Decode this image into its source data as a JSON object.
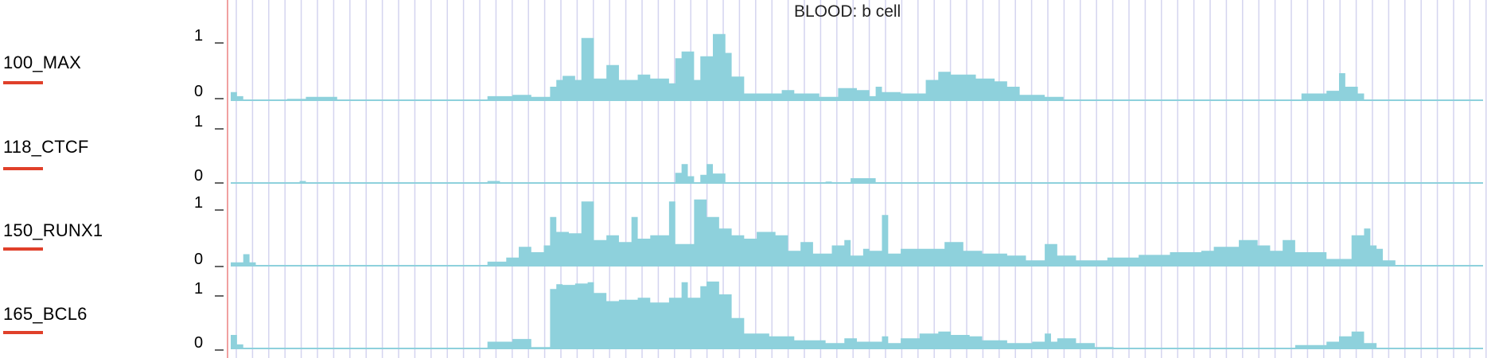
{
  "chart_data": {
    "type": "area",
    "title": "BLOOD: b cell",
    "xlabel": "",
    "ylabel": "",
    "x_bins": 200,
    "ylim": [
      0,
      1
    ],
    "y_ticks": [
      "1",
      "0"
    ],
    "grid": "vertical",
    "colors": {
      "fill": "#8ed1dc",
      "baseline": "#8ed1dc",
      "grid": "#d4d4ef",
      "underline": "#e0402a",
      "origin_line": "#f0a0a0"
    },
    "series": [
      {
        "name": "100_MAX",
        "segments": [
          [
            0,
            0.12
          ],
          [
            1,
            0.06
          ],
          [
            2,
            0.0
          ],
          [
            9,
            0.02
          ],
          [
            12,
            0.05
          ],
          [
            17,
            0.0
          ],
          [
            41,
            0.06
          ],
          [
            45,
            0.08
          ],
          [
            48,
            0.05
          ],
          [
            51,
            0.2
          ],
          [
            52,
            0.3
          ],
          [
            53,
            0.36
          ],
          [
            55,
            0.3
          ],
          [
            56,
            0.92
          ],
          [
            58,
            0.32
          ],
          [
            60,
            0.52
          ],
          [
            62,
            0.3
          ],
          [
            65,
            0.38
          ],
          [
            67,
            0.32
          ],
          [
            70,
            0.25
          ],
          [
            71,
            0.62
          ],
          [
            72,
            0.72
          ],
          [
            74,
            0.3
          ],
          [
            75,
            0.65
          ],
          [
            77,
            0.98
          ],
          [
            79,
            0.7
          ],
          [
            80,
            0.35
          ],
          [
            82,
            0.1
          ],
          [
            88,
            0.15
          ],
          [
            90,
            0.1
          ],
          [
            94,
            0.05
          ],
          [
            97,
            0.18
          ],
          [
            100,
            0.15
          ],
          [
            102,
            0.06
          ],
          [
            103,
            0.2
          ],
          [
            104,
            0.12
          ],
          [
            107,
            0.1
          ],
          [
            111,
            0.3
          ],
          [
            113,
            0.42
          ],
          [
            115,
            0.38
          ],
          [
            119,
            0.32
          ],
          [
            122,
            0.28
          ],
          [
            124,
            0.2
          ],
          [
            126,
            0.08
          ],
          [
            130,
            0.05
          ],
          [
            133,
            0.0
          ],
          [
            171,
            0.1
          ],
          [
            175,
            0.14
          ],
          [
            177,
            0.4
          ],
          [
            178,
            0.2
          ],
          [
            180,
            0.1
          ],
          [
            181,
            0.0
          ]
        ]
      },
      {
        "name": "118_CTCF",
        "segments": [
          [
            0,
            0.0
          ],
          [
            11,
            0.03
          ],
          [
            12,
            0.0
          ],
          [
            41,
            0.03
          ],
          [
            43,
            0.0
          ],
          [
            71,
            0.15
          ],
          [
            72,
            0.28
          ],
          [
            73,
            0.1
          ],
          [
            74,
            0.0
          ],
          [
            75,
            0.12
          ],
          [
            76,
            0.28
          ],
          [
            77,
            0.14
          ],
          [
            79,
            0.0
          ],
          [
            95,
            0.02
          ],
          [
            96,
            0.0
          ],
          [
            99,
            0.07
          ],
          [
            103,
            0.0
          ]
        ]
      },
      {
        "name": "150_RUNX1",
        "segments": [
          [
            0,
            0.05
          ],
          [
            2,
            0.17
          ],
          [
            3,
            0.05
          ],
          [
            4,
            0.0
          ],
          [
            41,
            0.06
          ],
          [
            44,
            0.12
          ],
          [
            46,
            0.28
          ],
          [
            48,
            0.2
          ],
          [
            50,
            0.3
          ],
          [
            51,
            0.72
          ],
          [
            52,
            0.5
          ],
          [
            54,
            0.48
          ],
          [
            56,
            0.95
          ],
          [
            58,
            0.38
          ],
          [
            60,
            0.45
          ],
          [
            62,
            0.35
          ],
          [
            64,
            0.72
          ],
          [
            65,
            0.4
          ],
          [
            67,
            0.45
          ],
          [
            70,
            0.95
          ],
          [
            71,
            0.32
          ],
          [
            74,
            0.98
          ],
          [
            76,
            0.72
          ],
          [
            78,
            0.55
          ],
          [
            80,
            0.45
          ],
          [
            82,
            0.4
          ],
          [
            84,
            0.5
          ],
          [
            87,
            0.45
          ],
          [
            89,
            0.22
          ],
          [
            91,
            0.35
          ],
          [
            93,
            0.18
          ],
          [
            96,
            0.3
          ],
          [
            98,
            0.38
          ],
          [
            99,
            0.15
          ],
          [
            101,
            0.25
          ],
          [
            102,
            0.22
          ],
          [
            104,
            0.75
          ],
          [
            105,
            0.18
          ],
          [
            107,
            0.25
          ],
          [
            110,
            0.25
          ],
          [
            114,
            0.35
          ],
          [
            117,
            0.22
          ],
          [
            120,
            0.18
          ],
          [
            124,
            0.15
          ],
          [
            127,
            0.08
          ],
          [
            130,
            0.32
          ],
          [
            132,
            0.15
          ],
          [
            135,
            0.08
          ],
          [
            140,
            0.12
          ],
          [
            145,
            0.16
          ],
          [
            150,
            0.2
          ],
          [
            155,
            0.22
          ],
          [
            157,
            0.28
          ],
          [
            161,
            0.38
          ],
          [
            164,
            0.3
          ],
          [
            166,
            0.22
          ],
          [
            168,
            0.38
          ],
          [
            170,
            0.2
          ],
          [
            175,
            0.1
          ],
          [
            179,
            0.45
          ],
          [
            181,
            0.55
          ],
          [
            182,
            0.3
          ],
          [
            183,
            0.25
          ],
          [
            184,
            0.08
          ],
          [
            186,
            0.0
          ]
        ]
      },
      {
        "name": "165_BCL6",
        "segments": [
          [
            0,
            0.2
          ],
          [
            1,
            0.06
          ],
          [
            2,
            0.0
          ],
          [
            41,
            0.1
          ],
          [
            45,
            0.14
          ],
          [
            48,
            0.02
          ],
          [
            51,
            0.88
          ],
          [
            52,
            0.95
          ],
          [
            53,
            0.94
          ],
          [
            55,
            0.96
          ],
          [
            57,
            0.98
          ],
          [
            58,
            0.82
          ],
          [
            60,
            0.7
          ],
          [
            62,
            0.72
          ],
          [
            65,
            0.75
          ],
          [
            67,
            0.68
          ],
          [
            70,
            0.75
          ],
          [
            72,
            0.98
          ],
          [
            73,
            0.75
          ],
          [
            75,
            0.92
          ],
          [
            76,
            0.99
          ],
          [
            78,
            0.8
          ],
          [
            80,
            0.45
          ],
          [
            82,
            0.22
          ],
          [
            86,
            0.18
          ],
          [
            90,
            0.12
          ],
          [
            95,
            0.08
          ],
          [
            98,
            0.15
          ],
          [
            100,
            0.1
          ],
          [
            104,
            0.18
          ],
          [
            105,
            0.08
          ],
          [
            107,
            0.15
          ],
          [
            110,
            0.22
          ],
          [
            113,
            0.25
          ],
          [
            115,
            0.2
          ],
          [
            118,
            0.18
          ],
          [
            120,
            0.12
          ],
          [
            124,
            0.08
          ],
          [
            128,
            0.1
          ],
          [
            130,
            0.22
          ],
          [
            131,
            0.1
          ],
          [
            132,
            0.15
          ],
          [
            135,
            0.08
          ],
          [
            138,
            0.02
          ],
          [
            141,
            0.0
          ],
          [
            170,
            0.05
          ],
          [
            175,
            0.1
          ],
          [
            177,
            0.18
          ],
          [
            179,
            0.25
          ],
          [
            181,
            0.08
          ],
          [
            183,
            0.0
          ]
        ]
      }
    ]
  }
}
